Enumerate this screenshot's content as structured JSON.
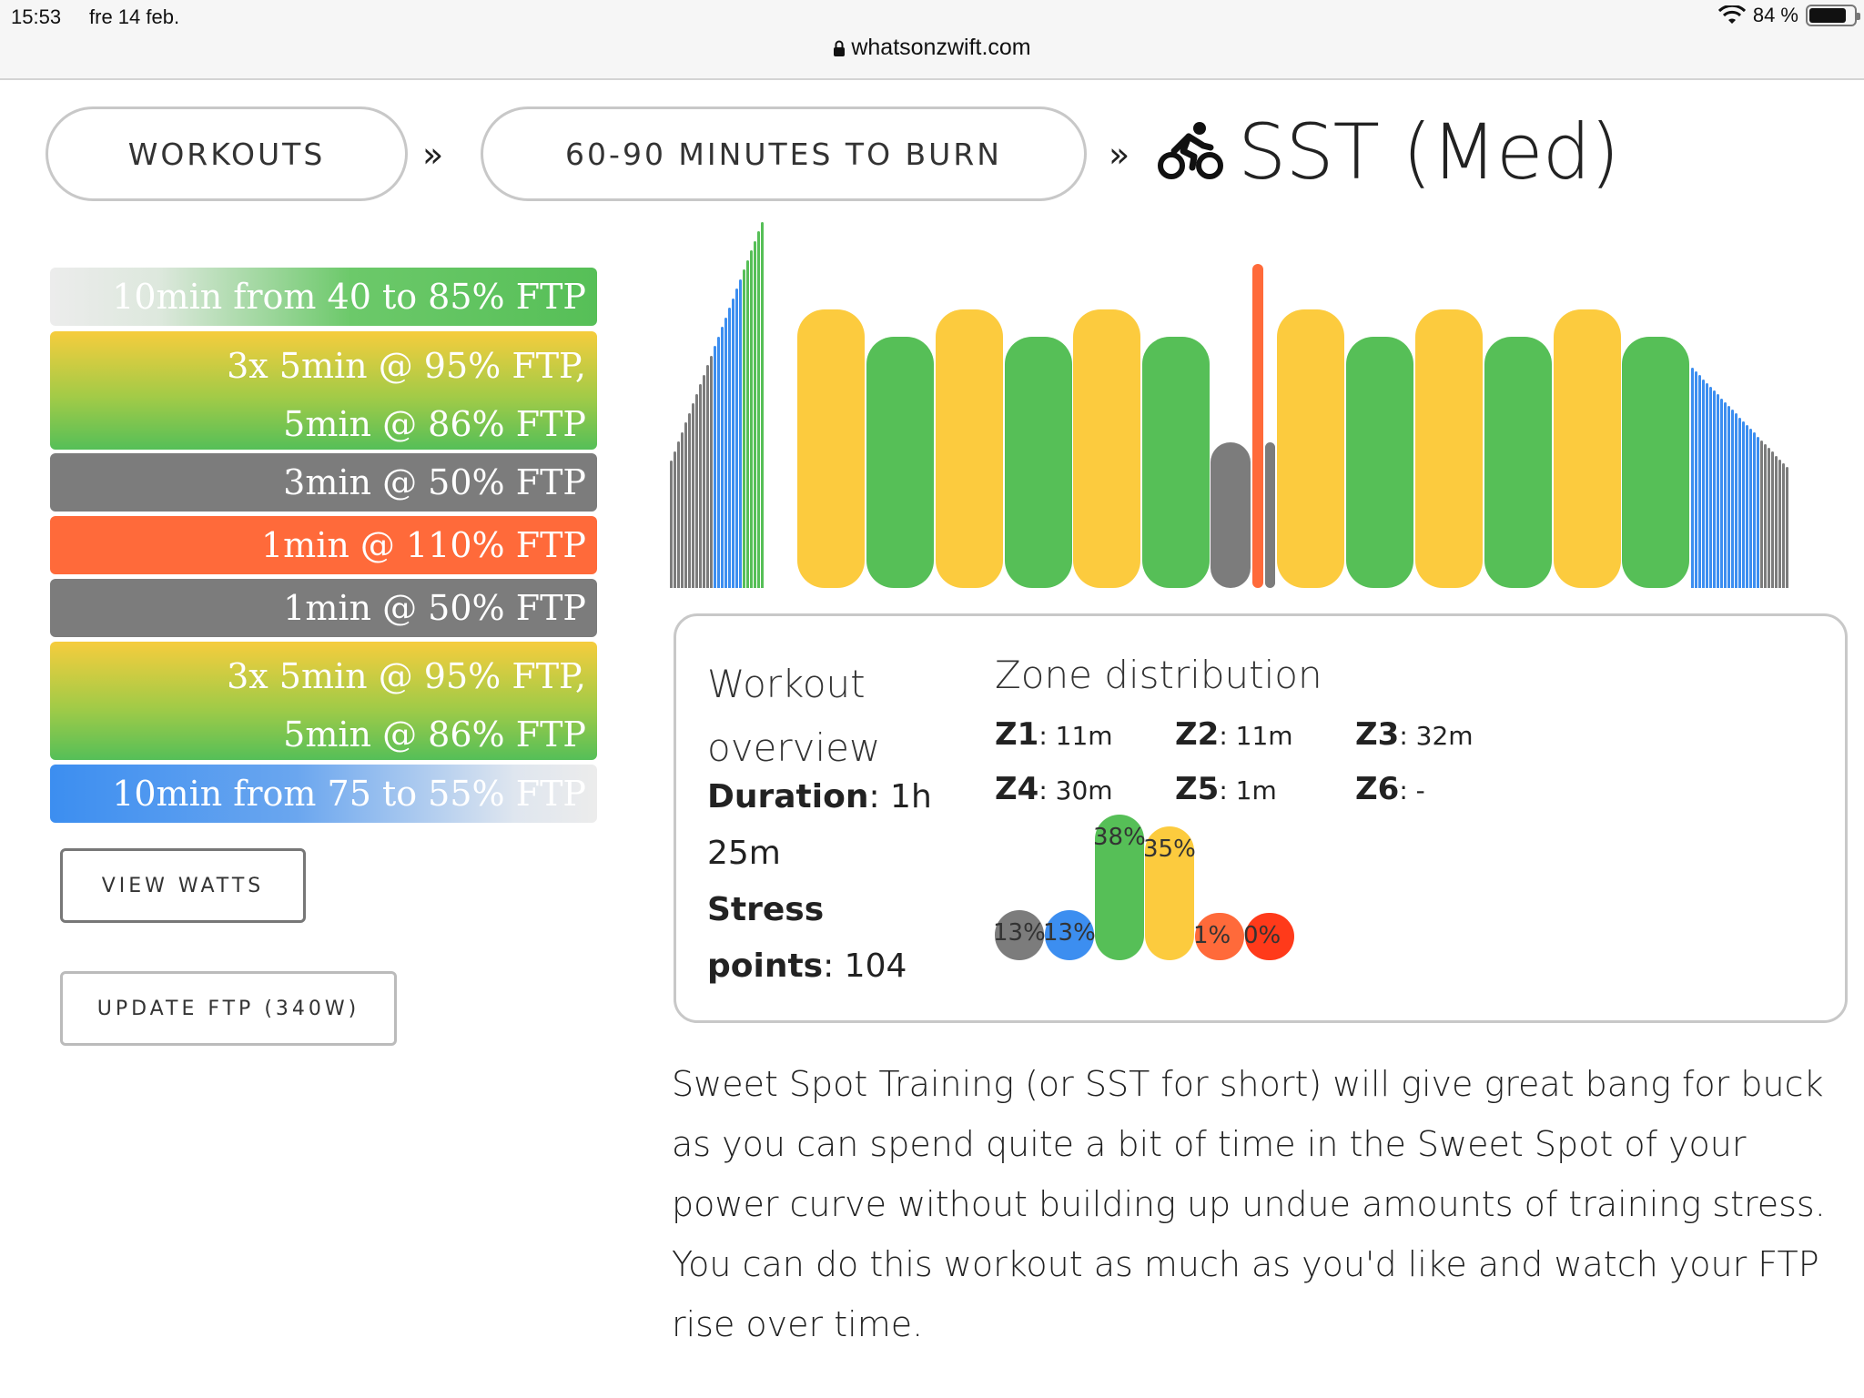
{
  "status": {
    "time": "15:53",
    "date": "fre 14 feb.",
    "battery": "84 %",
    "battery_level": 0.84
  },
  "url": "whatsonzwift.com",
  "breadcrumb": {
    "item1": "WORKOUTS",
    "item2": "60-90 MINUTES TO BURN",
    "sep": "»",
    "title": "SST (Med)"
  },
  "steps": [
    {
      "lines": [
        "10min from 40 to 85% FTP"
      ]
    },
    {
      "lines": [
        "3x 5min @ 95% FTP,",
        "5min @ 86% FTP"
      ]
    },
    {
      "lines": [
        "3min @ 50% FTP"
      ]
    },
    {
      "lines": [
        "1min @ 110% FTP"
      ]
    },
    {
      "lines": [
        "1min @ 50% FTP"
      ]
    },
    {
      "lines": [
        "3x 5min @ 95% FTP,",
        "5min @ 86% FTP"
      ]
    },
    {
      "lines": [
        "10min from 75 to 55% FTP"
      ]
    }
  ],
  "buttons": {
    "view_watts": "VIEW WATTS",
    "update_ftp": "UPDATE FTP (340W)"
  },
  "overview": {
    "title_line1": "Workout",
    "title_line2": "overview",
    "duration_label": "Duration",
    "duration_value_1": ": 1h",
    "duration_value_2": "25m",
    "stress_label_1": "Stress",
    "stress_label_2": "points",
    "stress_value": ": 104"
  },
  "zones": {
    "title": "Zone distribution",
    "items": [
      {
        "label": "Z1",
        "value": ": 11m"
      },
      {
        "label": "Z2",
        "value": ": 11m"
      },
      {
        "label": "Z3",
        "value": ": 32m"
      },
      {
        "label": "Z4",
        "value": ": 30m"
      },
      {
        "label": "Z5",
        "value": ": 1m"
      },
      {
        "label": "Z6",
        "value": ": -"
      }
    ],
    "bars": [
      {
        "pct": 13,
        "label": "13%",
        "color": "#7c7c7c"
      },
      {
        "pct": 13,
        "label": "13%",
        "color": "#3c8ef0"
      },
      {
        "pct": 38,
        "label": "38%",
        "color": "#56bf57"
      },
      {
        "pct": 35,
        "label": "35%",
        "color": "#fccb3e"
      },
      {
        "pct": 1,
        "label": "1%",
        "color": "#ff6a3a"
      },
      {
        "pct": 0,
        "label": "0%",
        "color": "#ff3a1a"
      }
    ]
  },
  "colors": {
    "z1": "#7c7c7c",
    "z2": "#3c8ef0",
    "z3": "#56bf57",
    "z4": "#fccb3e",
    "z5": "#ff6a3a"
  },
  "description": "Sweet Spot Training (or SST for short) will give great bang for buck as you can spend quite a bit of time in the Sweet Spot of your power curve without building up undue amounts of training stress. You can do this workout as much as you'd like and watch your FTP rise over time."
}
